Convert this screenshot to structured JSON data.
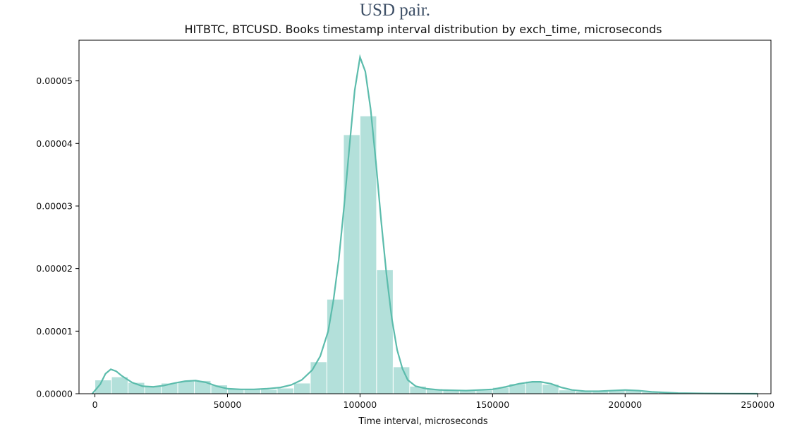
{
  "caption": "USD pair.",
  "chart_data": {
    "type": "bar",
    "title": "HITBTC, BTCUSD. Books timestamp interval distribution by exch_time, microseconds",
    "xlabel": "Time interval, microseconds",
    "ylabel": "",
    "xlim": [
      -6000,
      255000
    ],
    "ylim": [
      0,
      5.65e-05
    ],
    "x_ticks": [
      0,
      50000,
      100000,
      150000,
      200000,
      250000
    ],
    "y_ticks": [
      0,
      1e-05,
      2e-05,
      3e-05,
      4e-05,
      5e-05
    ],
    "x_tick_labels": [
      "0",
      "50000",
      "100000",
      "150000",
      "200000",
      "250000"
    ],
    "y_tick_labels": [
      "0.00000",
      "0.00001",
      "0.00002",
      "0.00003",
      "0.00004",
      "0.00005"
    ],
    "bin_width": 6250,
    "bin_starts": [
      0,
      6250,
      12500,
      18750,
      25000,
      31250,
      37500,
      43750,
      50000,
      56250,
      62500,
      68750,
      75000,
      81250,
      87500,
      93750,
      100000,
      106250,
      112500,
      118750,
      125000,
      131250,
      137500,
      143750,
      150000,
      156250,
      162500,
      168750,
      175000,
      181250,
      187500,
      193750,
      200000,
      206250,
      212500,
      218750,
      225000,
      231250,
      237500,
      243750
    ],
    "bar_values": [
      2.2e-06,
      2.7e-06,
      1.8e-06,
      1.2e-06,
      1.7e-06,
      2e-06,
      2.1e-06,
      1.4e-06,
      8e-07,
      7e-07,
      7e-07,
      9e-07,
      1.7e-06,
      5.1e-06,
      1.51e-05,
      4.14e-05,
      4.44e-05,
      1.98e-05,
      4.3e-06,
      1.2e-06,
      8e-07,
      6e-07,
      5e-07,
      6e-07,
      1e-06,
      1.6e-06,
      2e-06,
      1.5e-06,
      6e-07,
      4e-07,
      4e-07,
      6e-07,
      6e-07,
      3e-07,
      2e-07,
      1e-07,
      1e-07,
      1e-07,
      1e-07,
      1e-07
    ],
    "kde": {
      "x": [
        -1000,
        2000,
        4000,
        6000,
        8000,
        10000,
        14000,
        18000,
        22000,
        26000,
        30000,
        34000,
        38000,
        42000,
        46000,
        50000,
        55000,
        60000,
        65000,
        70000,
        74000,
        78000,
        82000,
        85000,
        88000,
        90000,
        92000,
        94000,
        96000,
        98000,
        100000,
        102000,
        104000,
        106000,
        108000,
        110000,
        112000,
        114000,
        116000,
        118000,
        121000,
        125000,
        130000,
        140000,
        150000,
        155000,
        160000,
        165000,
        168000,
        172000,
        176000,
        180000,
        185000,
        190000,
        195000,
        200000,
        205000,
        210000,
        220000,
        230000,
        240000,
        250000
      ],
      "y": [
        0,
        1.5e-06,
        3.2e-06,
        3.9e-06,
        3.6e-06,
        2.9e-06,
        1.8e-06,
        1.2e-06,
        1.1e-06,
        1.3e-06,
        1.7e-06,
        2e-06,
        2.1e-06,
        1.8e-06,
        1.2e-06,
        8e-07,
        7e-07,
        7e-07,
        8e-07,
        1e-06,
        1.4e-06,
        2.2e-06,
        3.8e-06,
        6e-06,
        1e-05,
        1.5e-05,
        2.15e-05,
        3e-05,
        3.95e-05,
        4.85e-05,
        5.38e-05,
        5.15e-05,
        4.55e-05,
        3.7e-05,
        2.75e-05,
        1.9e-05,
        1.2e-05,
        7e-06,
        4e-06,
        2.2e-06,
        1.2e-06,
        8e-07,
        6e-07,
        5e-07,
        7e-07,
        1.1e-06,
        1.6e-06,
        1.9e-06,
        1.9e-06,
        1.6e-06,
        1e-06,
        6e-07,
        4e-07,
        4e-07,
        5e-07,
        6e-07,
        5e-07,
        3e-07,
        1e-07,
        5e-08,
        2e-08,
        0
      ]
    },
    "bar_color": "#b3e0da",
    "line_color": "#5cbcac",
    "grid": false,
    "legend": "none"
  }
}
